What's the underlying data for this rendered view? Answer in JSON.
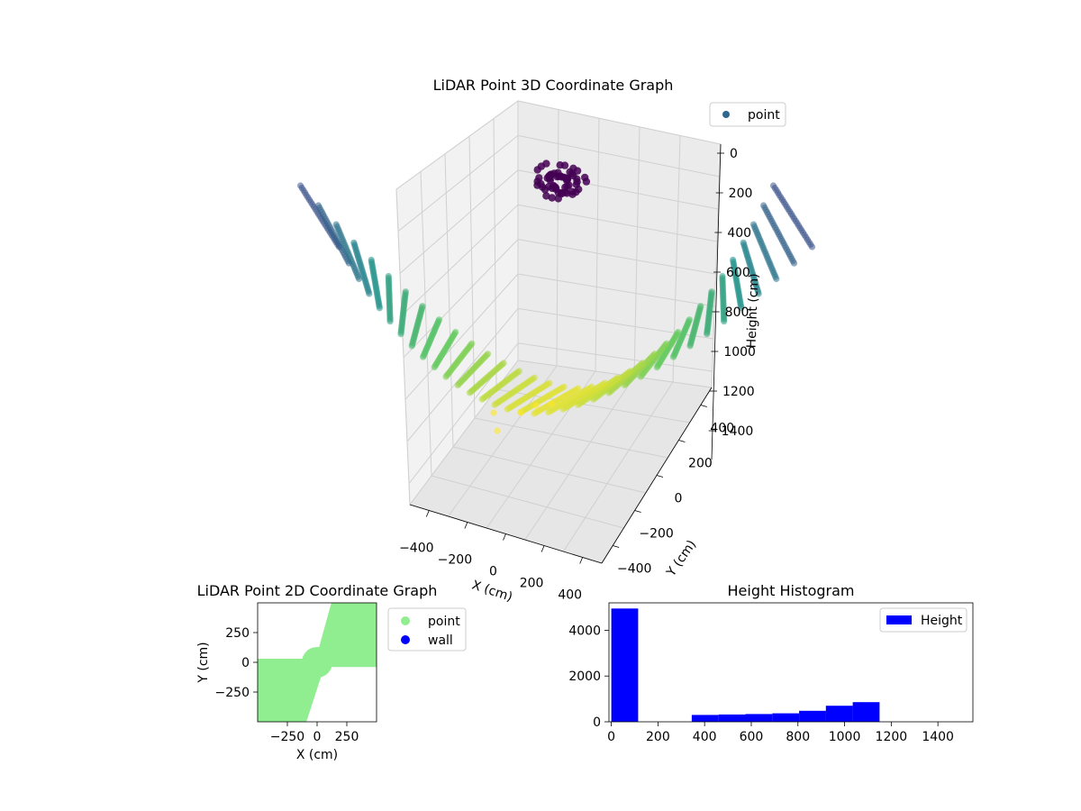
{
  "chart_data": [
    {
      "type": "scatter3d",
      "title": "LiDAR Point 3D Coordinate Graph",
      "xlabel": "X (cm)",
      "ylabel": "Y (cm)",
      "zlabel": "Height (cm)",
      "x_ticks": [
        -400,
        -200,
        0,
        200,
        400
      ],
      "y_ticks": [
        -400,
        -200,
        0,
        200,
        400
      ],
      "z_ticks": [
        0,
        200,
        400,
        600,
        800,
        1000,
        1200,
        1400
      ],
      "x_tick_labels": [
        "−400",
        "−200",
        "0",
        "200",
        "400"
      ],
      "y_tick_labels": [
        "−400",
        "−200",
        "0",
        "200",
        "400"
      ],
      "z_tick_labels": [
        "0",
        "200",
        "400",
        "600",
        "800",
        "1000",
        "1200",
        "1400"
      ],
      "zlim": [
        0,
        1500
      ],
      "z_inverted": true,
      "colormap": "viridis",
      "legend": [
        {
          "label": "point",
          "color": "#30678d"
        }
      ],
      "surface": {
        "description": "saddle-shaped dense point cloud",
        "height_range": [
          350,
          1200
        ]
      },
      "cluster": {
        "height_range": [
          50,
          120
        ]
      }
    },
    {
      "type": "scatter",
      "title": "LiDAR Point 2D Coordinate Graph",
      "xlabel": "X (cm)",
      "ylabel": "Y (cm)",
      "xlim": [
        -500,
        500
      ],
      "ylim": [
        -500,
        500
      ],
      "x_ticks": [
        -250,
        0,
        250
      ],
      "y_ticks": [
        -250,
        0,
        250
      ],
      "x_tick_labels": [
        "−250",
        "0",
        "250"
      ],
      "y_tick_labels": [
        "−250",
        "0",
        "250"
      ],
      "series": [
        {
          "name": "point",
          "color": "#90ee90"
        },
        {
          "name": "wall",
          "color": "#0000ff"
        }
      ]
    },
    {
      "type": "bar",
      "title": "Height Histogram",
      "xlabel": "",
      "ylabel": "",
      "xlim": [
        -10,
        1550
      ],
      "ylim": [
        0,
        5200
      ],
      "x_ticks": [
        0,
        200,
        400,
        600,
        800,
        1000,
        1200,
        1400
      ],
      "y_ticks": [
        0,
        2000,
        4000
      ],
      "color": "#0000ff",
      "legend": [
        {
          "label": "Height",
          "color": "#0000ff"
        }
      ],
      "bins": [
        {
          "start": 0,
          "end": 115,
          "count": 4950
        },
        {
          "start": 115,
          "end": 230,
          "count": 0
        },
        {
          "start": 230,
          "end": 345,
          "count": 0
        },
        {
          "start": 345,
          "end": 460,
          "count": 300
        },
        {
          "start": 460,
          "end": 575,
          "count": 320
        },
        {
          "start": 575,
          "end": 690,
          "count": 340
        },
        {
          "start": 690,
          "end": 805,
          "count": 370
        },
        {
          "start": 805,
          "end": 920,
          "count": 480
        },
        {
          "start": 920,
          "end": 1035,
          "count": 700
        },
        {
          "start": 1035,
          "end": 1150,
          "count": 860
        }
      ]
    }
  ]
}
